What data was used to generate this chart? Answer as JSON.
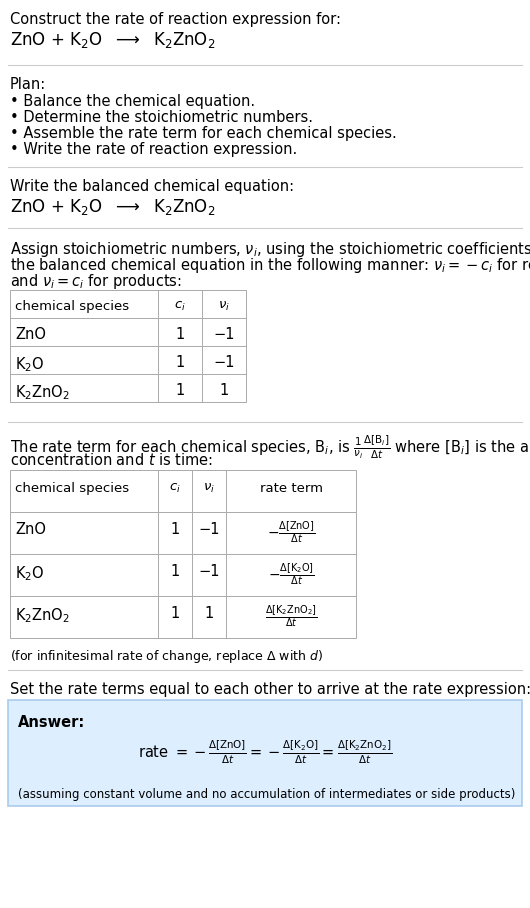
{
  "title_line1": "Construct the rate of reaction expression for:",
  "title_line2": "ZnO + K$_2$O  $\\longrightarrow$  K$_2$ZnO$_2$",
  "plan_header": "Plan:",
  "plan_items": [
    "• Balance the chemical equation.",
    "• Determine the stoichiometric numbers.",
    "• Assemble the rate term for each chemical species.",
    "• Write the rate of reaction expression."
  ],
  "balanced_header": "Write the balanced chemical equation:",
  "balanced_eq": "ZnO + K$_2$O  $\\longrightarrow$  K$_2$ZnO$_2$",
  "stoich_intro_l1": "Assign stoichiometric numbers, $\\nu_i$, using the stoichiometric coefficients, $c_i$, from",
  "stoich_intro_l2": "the balanced chemical equation in the following manner: $\\nu_i = -c_i$ for reactants",
  "stoich_intro_l3": "and $\\nu_i = c_i$ for products:",
  "table1_headers": [
    "chemical species",
    "$c_i$",
    "$\\nu_i$"
  ],
  "table1_rows": [
    [
      "ZnO",
      "1",
      "−1"
    ],
    [
      "K$_2$O",
      "1",
      "−1"
    ],
    [
      "K$_2$ZnO$_2$",
      "1",
      "1"
    ]
  ],
  "rate_intro_l1": "The rate term for each chemical species, B$_i$, is $\\frac{1}{\\nu_i}\\frac{\\Delta[\\mathrm{B}_i]}{\\Delta t}$ where [B$_i$] is the amount",
  "rate_intro_l2": "concentration and $t$ is time:",
  "table2_headers": [
    "chemical species",
    "$c_i$",
    "$\\nu_i$",
    "rate term"
  ],
  "table2_rows": [
    [
      "ZnO",
      "1",
      "−1",
      "$-\\frac{\\Delta[\\mathrm{ZnO}]}{\\Delta t}$"
    ],
    [
      "K$_2$O",
      "1",
      "−1",
      "$-\\frac{\\Delta[\\mathrm{K_2O}]}{\\Delta t}$"
    ],
    [
      "K$_2$ZnO$_2$",
      "1",
      "1",
      "$\\frac{\\Delta[\\mathrm{K_2ZnO_2}]}{\\Delta t}$"
    ]
  ],
  "infinitesimal_note": "(for infinitesimal rate of change, replace Δ with $d$)",
  "set_equal_text": "Set the rate terms equal to each other to arrive at the rate expression:",
  "answer_label": "Answer:",
  "answer_box_color": "#ddeeff",
  "answer_box_border": "#aaccee",
  "answer_eq": "rate $= -\\frac{\\Delta[\\mathrm{ZnO}]}{\\Delta t} = -\\frac{\\Delta[\\mathrm{K_2O}]}{\\Delta t} = \\frac{\\Delta[\\mathrm{K_2ZnO_2}]}{\\Delta t}$",
  "answer_note": "(assuming constant volume and no accumulation of intermediates or side products)",
  "bg_color": "#ffffff",
  "div_line_color": "#bbbbbb",
  "table_line_color": "#aaaaaa"
}
